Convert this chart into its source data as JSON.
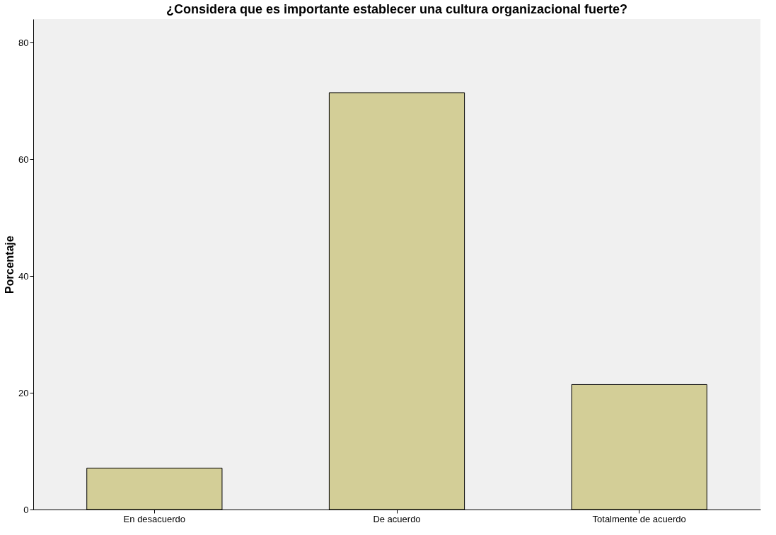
{
  "chart_data": {
    "type": "bar",
    "title": "¿Considera que es importante establecer una cultura organizacional fuerte?",
    "ylabel": "Porcentaje",
    "categories": [
      "En desacuerdo",
      "De acuerdo",
      "Totalmente de acuerdo"
    ],
    "values": [
      7.1,
      71.4,
      21.4
    ],
    "color": "#d3ce97",
    "ylim": [
      0,
      84
    ],
    "yticks": [
      0,
      20,
      40,
      60,
      80
    ],
    "grid": false
  }
}
